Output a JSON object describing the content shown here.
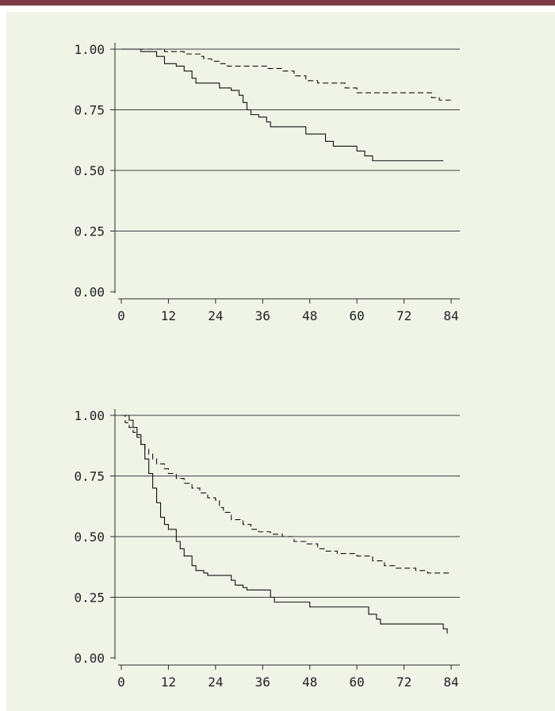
{
  "colors": {
    "top_bar": "#7a3b45",
    "panel_background": "#eff4e6",
    "axis": "#2b2b2b",
    "gridline": "#3f3f3f",
    "series": "#111111"
  },
  "chart_data": [
    {
      "type": "line",
      "title": "",
      "xlabel": "",
      "ylabel": "",
      "xlim": [
        0,
        84
      ],
      "ylim": [
        0,
        1
      ],
      "x_ticks": [
        "0",
        "12",
        "24",
        "36",
        "48",
        "60",
        "72",
        "84"
      ],
      "y_ticks": [
        "0.00",
        "0.25",
        "0.50",
        "0.75",
        "1.00"
      ],
      "grid": "horizontal",
      "step": true,
      "series": [
        {
          "style": "dashed",
          "points": [
            [
              0,
              1.0
            ],
            [
              10,
              1.0
            ],
            [
              11,
              0.99
            ],
            [
              15,
              0.99
            ],
            [
              16,
              0.98
            ],
            [
              19,
              0.98
            ],
            [
              20,
              0.97
            ],
            [
              21,
              0.96
            ],
            [
              23,
              0.95
            ],
            [
              25,
              0.94
            ],
            [
              27,
              0.93
            ],
            [
              29,
              0.93
            ],
            [
              37,
              0.92
            ],
            [
              41,
              0.91
            ],
            [
              44,
              0.89
            ],
            [
              47,
              0.87
            ],
            [
              50,
              0.86
            ],
            [
              56,
              0.86
            ],
            [
              57,
              0.84
            ],
            [
              60,
              0.82
            ],
            [
              77,
              0.82
            ],
            [
              79,
              0.8
            ],
            [
              81,
              0.79
            ],
            [
              84,
              0.79
            ]
          ]
        },
        {
          "style": "solid",
          "points": [
            [
              0,
              1.0
            ],
            [
              5,
              0.99
            ],
            [
              8,
              0.99
            ],
            [
              9,
              0.97
            ],
            [
              11,
              0.94
            ],
            [
              14,
              0.93
            ],
            [
              16,
              0.91
            ],
            [
              18,
              0.88
            ],
            [
              19,
              0.86
            ],
            [
              24,
              0.86
            ],
            [
              25,
              0.84
            ],
            [
              28,
              0.83
            ],
            [
              30,
              0.81
            ],
            [
              31,
              0.78
            ],
            [
              32,
              0.75
            ],
            [
              33,
              0.73
            ],
            [
              35,
              0.72
            ],
            [
              37,
              0.7
            ],
            [
              38,
              0.68
            ],
            [
              46,
              0.68
            ],
            [
              47,
              0.65
            ],
            [
              51,
              0.65
            ],
            [
              52,
              0.62
            ],
            [
              54,
              0.6
            ],
            [
              59,
              0.6
            ],
            [
              60,
              0.58
            ],
            [
              62,
              0.56
            ],
            [
              64,
              0.54
            ],
            [
              80,
              0.54
            ],
            [
              82,
              0.54
            ]
          ]
        }
      ]
    },
    {
      "type": "line",
      "title": "",
      "xlabel": "",
      "ylabel": "",
      "xlim": [
        0,
        84
      ],
      "ylim": [
        0,
        1
      ],
      "x_ticks": [
        "0",
        "12",
        "24",
        "36",
        "48",
        "60",
        "72",
        "84"
      ],
      "y_ticks": [
        "0.00",
        "0.25",
        "0.50",
        "0.75",
        "1.00"
      ],
      "grid": "horizontal",
      "step": true,
      "series": [
        {
          "style": "dashed",
          "points": [
            [
              0,
              1.0
            ],
            [
              1,
              0.97
            ],
            [
              2,
              0.95
            ],
            [
              3,
              0.93
            ],
            [
              4,
              0.91
            ],
            [
              5,
              0.88
            ],
            [
              6,
              0.86
            ],
            [
              7,
              0.84
            ],
            [
              8,
              0.82
            ],
            [
              9,
              0.8
            ],
            [
              11,
              0.78
            ],
            [
              12,
              0.76
            ],
            [
              14,
              0.74
            ],
            [
              16,
              0.72
            ],
            [
              18,
              0.7
            ],
            [
              20,
              0.68
            ],
            [
              22,
              0.66
            ],
            [
              24,
              0.65
            ],
            [
              25,
              0.62
            ],
            [
              26,
              0.6
            ],
            [
              28,
              0.57
            ],
            [
              31,
              0.55
            ],
            [
              33,
              0.53
            ],
            [
              35,
              0.52
            ],
            [
              38,
              0.51
            ],
            [
              41,
              0.5
            ],
            [
              44,
              0.48
            ],
            [
              47,
              0.47
            ],
            [
              50,
              0.45
            ],
            [
              52,
              0.44
            ],
            [
              55,
              0.43
            ],
            [
              60,
              0.42
            ],
            [
              64,
              0.4
            ],
            [
              67,
              0.38
            ],
            [
              70,
              0.37
            ],
            [
              75,
              0.36
            ],
            [
              78,
              0.35
            ],
            [
              84,
              0.35
            ]
          ]
        },
        {
          "style": "solid",
          "points": [
            [
              0,
              1.0
            ],
            [
              2,
              0.98
            ],
            [
              3,
              0.95
            ],
            [
              4,
              0.92
            ],
            [
              5,
              0.88
            ],
            [
              6,
              0.82
            ],
            [
              7,
              0.76
            ],
            [
              8,
              0.7
            ],
            [
              9,
              0.64
            ],
            [
              10,
              0.58
            ],
            [
              11,
              0.55
            ],
            [
              12,
              0.53
            ],
            [
              14,
              0.48
            ],
            [
              15,
              0.45
            ],
            [
              16,
              0.42
            ],
            [
              18,
              0.38
            ],
            [
              19,
              0.36
            ],
            [
              21,
              0.35
            ],
            [
              22,
              0.34
            ],
            [
              27,
              0.34
            ],
            [
              28,
              0.32
            ],
            [
              29,
              0.3
            ],
            [
              31,
              0.29
            ],
            [
              32,
              0.28
            ],
            [
              37,
              0.28
            ],
            [
              38,
              0.25
            ],
            [
              39,
              0.23
            ],
            [
              47,
              0.23
            ],
            [
              48,
              0.21
            ],
            [
              62,
              0.21
            ],
            [
              63,
              0.18
            ],
            [
              65,
              0.16
            ],
            [
              66,
              0.14
            ],
            [
              80,
              0.14
            ],
            [
              82,
              0.12
            ],
            [
              83,
              0.1
            ]
          ]
        }
      ]
    }
  ]
}
